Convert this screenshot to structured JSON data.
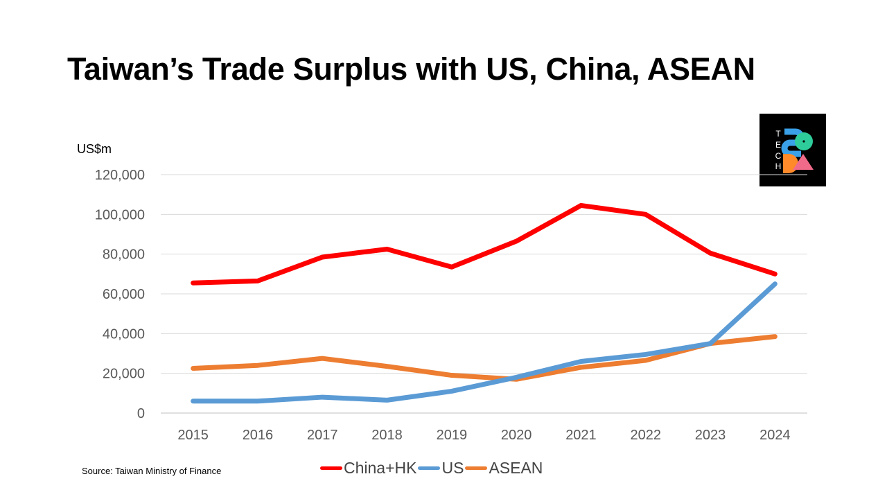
{
  "title": "Taiwan’s Trade Surplus with US, China, ASEAN",
  "source": "Source: Taiwan Ministry of Finance",
  "logo": {
    "letters": [
      "T",
      "E",
      "C",
      "H"
    ],
    "text": "SODA",
    "colors": {
      "s": "#3aa0e8",
      "o": "#2ecc9a",
      "d": "#ff8a2a",
      "a": "#f06a8a"
    }
  },
  "chart_data": {
    "type": "line",
    "title": "Taiwan’s Trade Surplus with US, China, ASEAN",
    "ylabel": "US$m",
    "xlabel": "",
    "x": [
      "2015",
      "2016",
      "2017",
      "2018",
      "2019",
      "2020",
      "2021",
      "2022",
      "2023",
      "2024"
    ],
    "ylim": [
      0,
      120000
    ],
    "yticks": [
      0,
      20000,
      40000,
      60000,
      80000,
      100000,
      120000
    ],
    "ytick_labels": [
      "0",
      "20,000",
      "40,000",
      "60,000",
      "80,000",
      "100,000",
      "120,000"
    ],
    "grid": true,
    "legend_position": "bottom",
    "series": [
      {
        "name": "China+HK",
        "color": "#ff0000",
        "values": [
          65500,
          66500,
          78500,
          82500,
          73500,
          86500,
          104500,
          100000,
          80500,
          70000
        ]
      },
      {
        "name": "US",
        "color": "#5b9bd5",
        "values": [
          6000,
          6000,
          8000,
          6500,
          11000,
          18000,
          26000,
          29500,
          35000,
          65000
        ]
      },
      {
        "name": "ASEAN",
        "color": "#ed7d31",
        "values": [
          22500,
          24000,
          27500,
          23500,
          19000,
          17000,
          23000,
          26500,
          35000,
          38500
        ]
      }
    ]
  }
}
